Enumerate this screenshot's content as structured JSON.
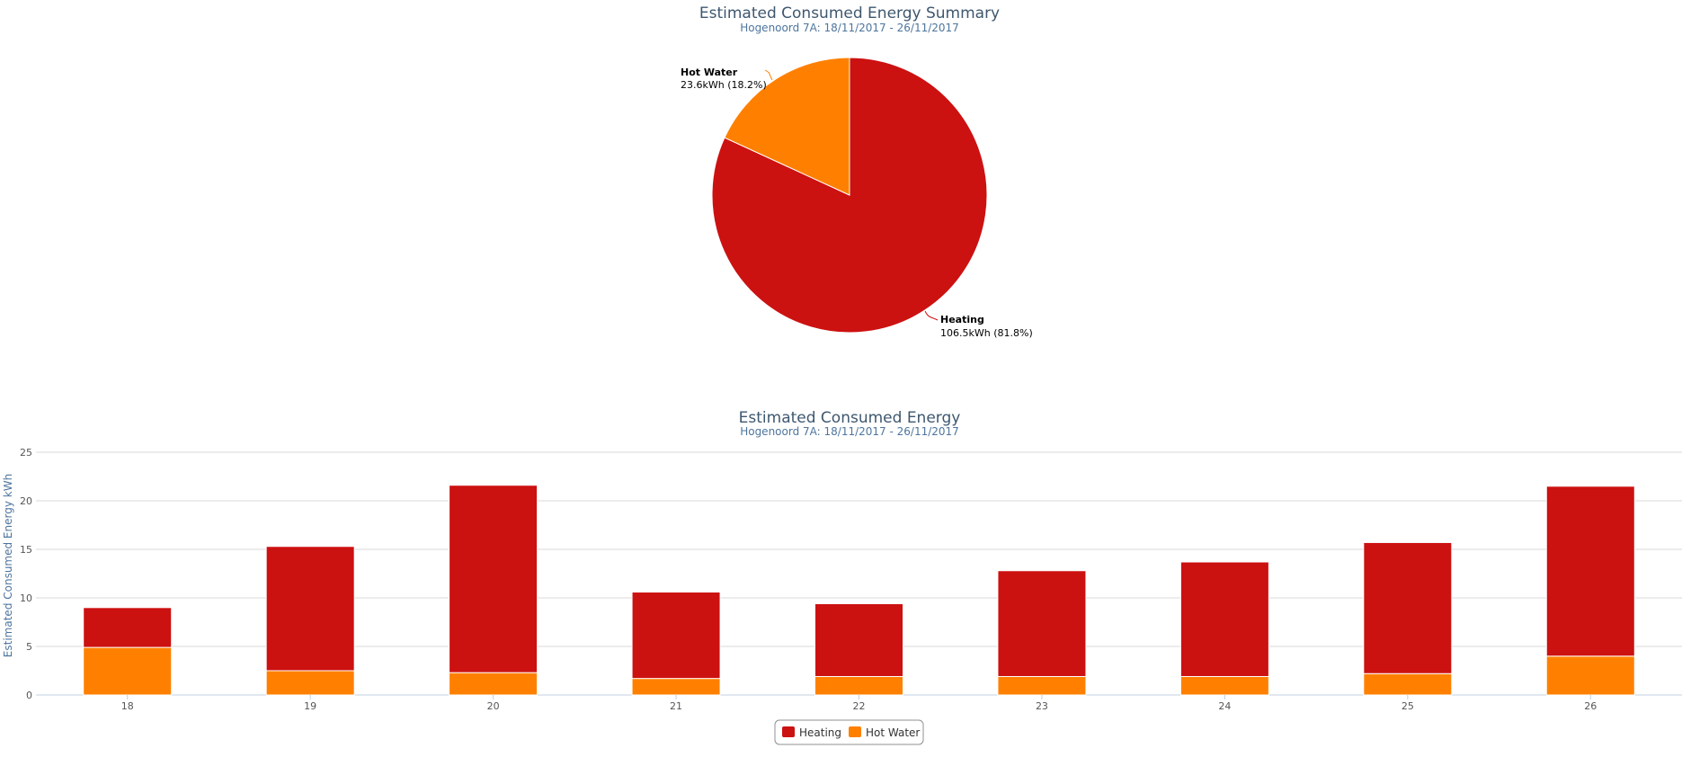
{
  "chart_data": [
    {
      "type": "pie",
      "title": "Estimated Consumed Energy Summary",
      "subtitle": "Hogenoord 7A: 18/11/2017 - 26/11/2017",
      "slices": [
        {
          "name": "Heating",
          "value": 106.5,
          "unit": "kWh",
          "percent": 81.8,
          "value_text": "106.5kWh (81.8%)",
          "color": "#cc1111"
        },
        {
          "name": "Hot Water",
          "value": 23.6,
          "unit": "kWh",
          "percent": 18.2,
          "value_text": "23.6kWh (18.2%)",
          "color": "#ff8000"
        }
      ]
    },
    {
      "type": "bar",
      "stacked": true,
      "title": "Estimated Consumed Energy",
      "subtitle": "Hogenoord 7A: 18/11/2017 - 26/11/2017",
      "ylabel": "Estimated Consumed Energy kWh",
      "xlabel": "",
      "ylim": [
        0,
        25
      ],
      "yticks": [
        0,
        5,
        10,
        15,
        20,
        25
      ],
      "categories": [
        "18",
        "19",
        "20",
        "21",
        "22",
        "23",
        "24",
        "25",
        "26"
      ],
      "series": [
        {
          "name": "Hot Water",
          "color": "#ff8000",
          "values": [
            4.9,
            2.5,
            2.3,
            1.7,
            1.9,
            1.9,
            1.9,
            2.2,
            4.0
          ]
        },
        {
          "name": "Heating",
          "color": "#cc1111",
          "values": [
            4.1,
            12.8,
            19.3,
            8.9,
            7.5,
            10.9,
            11.8,
            13.5,
            17.5
          ]
        }
      ],
      "legend": [
        "Heating",
        "Hot Water"
      ]
    }
  ]
}
